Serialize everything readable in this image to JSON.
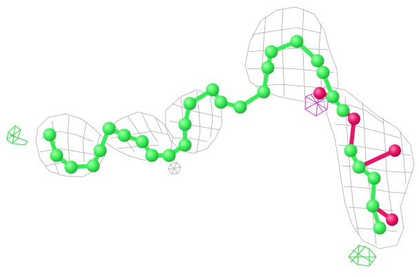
{
  "figure": {
    "colors": {
      "background": "#ffffff",
      "carbon": "#33ee55",
      "carbon_highlight": "#aaffaa",
      "oxygen": "#ee1166",
      "oxygen_highlight": "#ff88bb",
      "bond": "#33ee55",
      "density_mesh": "#a9a9a9",
      "difference_mesh_negative": "#cc33cc",
      "difference_mesh_positive": "#22dd33"
    },
    "icons": {
      "atom": "sphere-icon",
      "mesh": "wireframe-mesh-icon"
    }
  }
}
